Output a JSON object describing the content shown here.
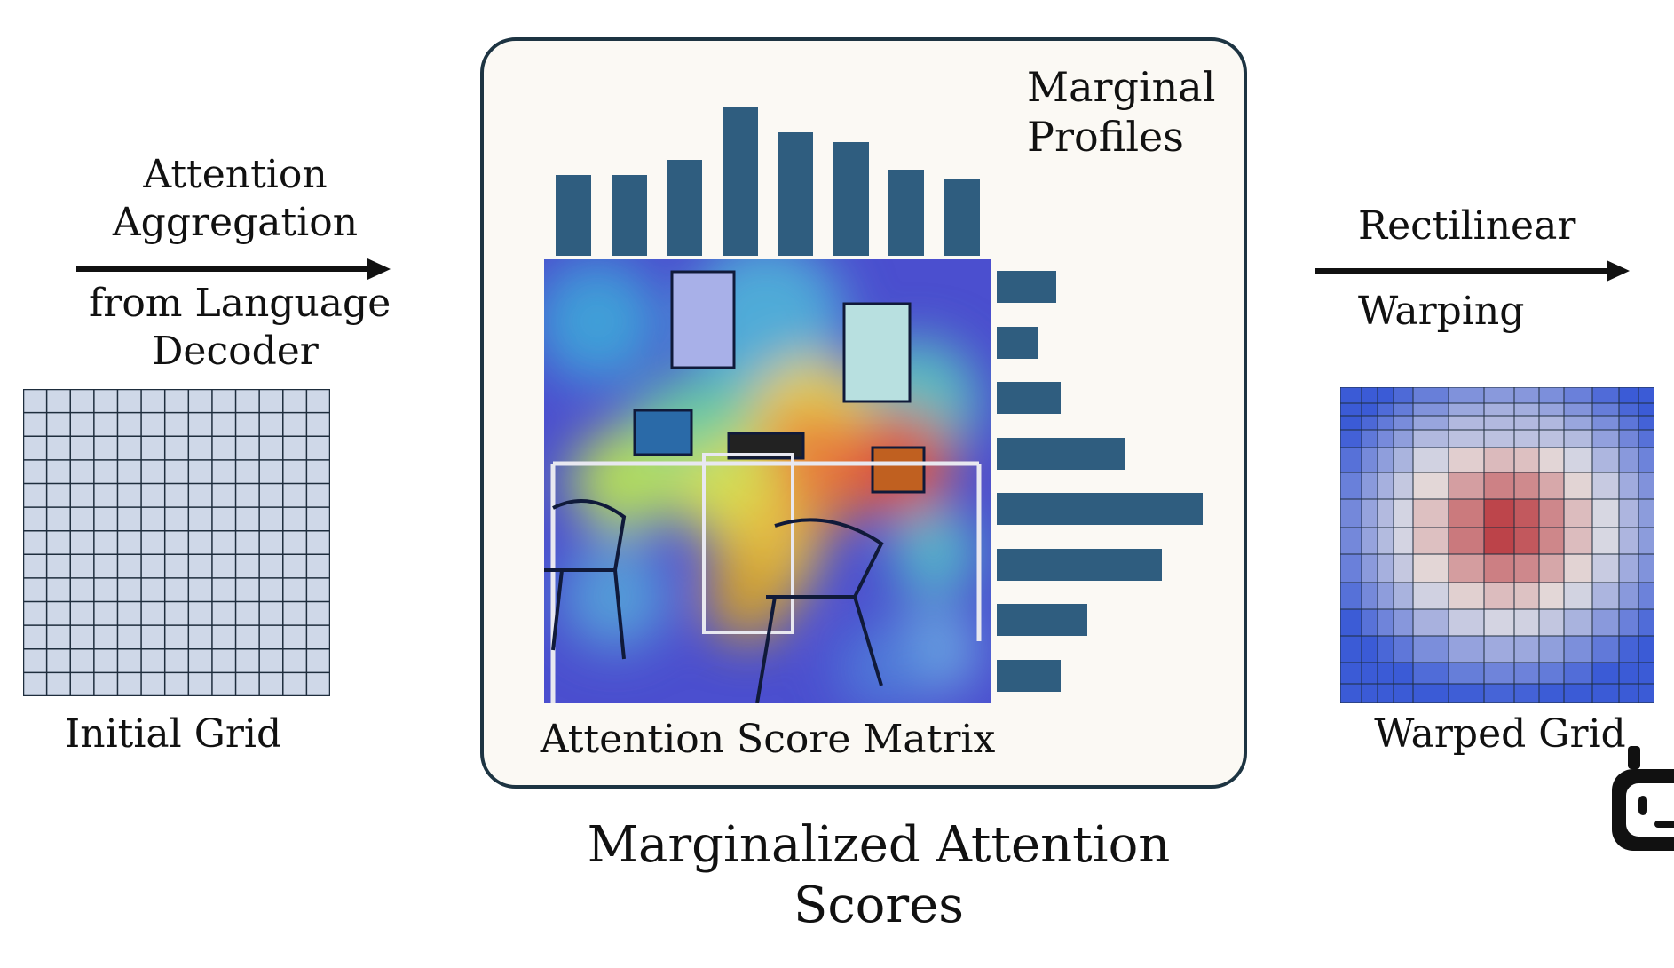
{
  "left_arrow": {
    "label_top": [
      "Attention",
      "Aggregation"
    ],
    "label_bottom": [
      "from Language",
      "Decoder"
    ]
  },
  "initial_grid": {
    "label": "Initial Grid",
    "rows": 13,
    "cols": 13,
    "fill_color": "#cfd8e8",
    "line_color": "#1e2d3d"
  },
  "center_panel": {
    "marginal_label": [
      "Marginal",
      "Profiles"
    ],
    "matrix_label": "Attention Score Matrix",
    "column_profile": [
      0.54,
      0.54,
      0.64,
      1.0,
      0.83,
      0.76,
      0.58,
      0.51
    ],
    "row_profile": [
      0.29,
      0.2,
      0.31,
      0.62,
      1.0,
      0.8,
      0.44,
      0.31
    ],
    "bar_color": "#2f5d7f"
  },
  "caption": [
    "Marginalized Attention",
    "Scores"
  ],
  "right_arrow": {
    "label_top": "Rectilinear",
    "label_bottom": "Warping"
  },
  "warped_grid": {
    "label": "Warped Grid",
    "colors": {
      "cold": "#3b5bd6",
      "neutral": "#e6e3e3",
      "hot": "#b4232a"
    }
  },
  "icons": {
    "corner": "robot-icon"
  }
}
